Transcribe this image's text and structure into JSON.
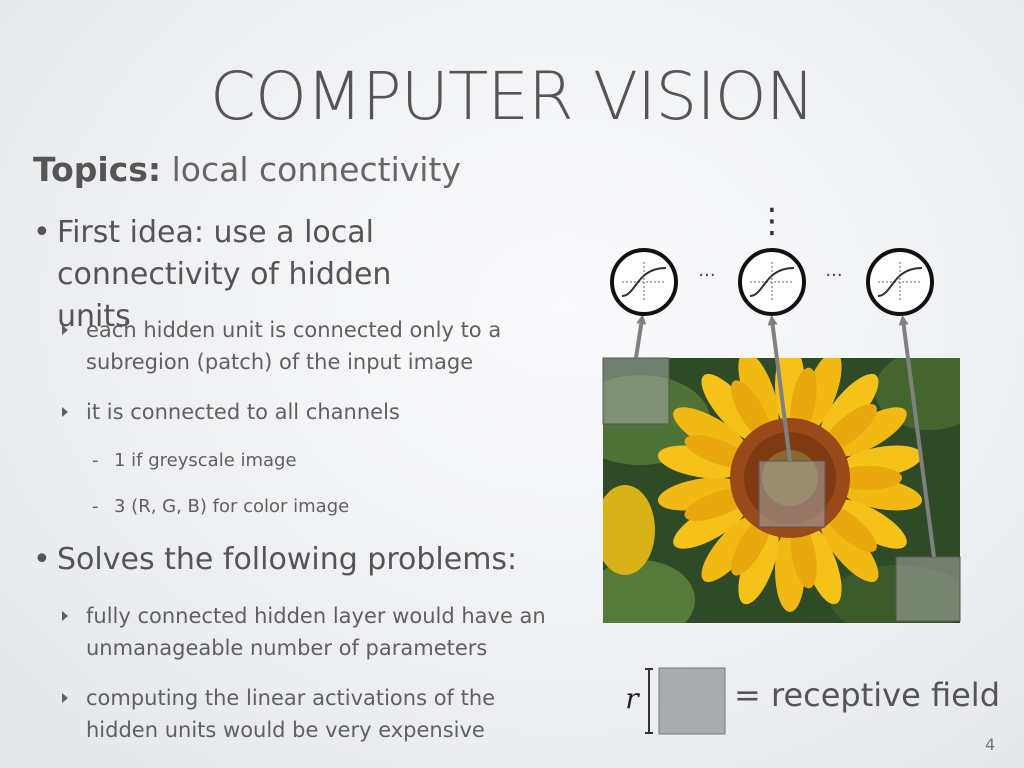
{
  "slide": {
    "title": "COMPUTER VISION",
    "topics_label": "Topics:",
    "topics_value": "local connectivity",
    "page_number": "4"
  },
  "bullets": [
    {
      "text": "First idea: use a local connectivity of hidden units",
      "subs": [
        {
          "text": "each hidden unit is connected only to a subregion (patch) of the input image"
        },
        {
          "text": "it is connected to all channels",
          "subs": [
            "1 if greyscale image",
            "3 (R, G, B) for color image"
          ]
        }
      ]
    },
    {
      "text": "Solves the following problems:",
      "subs": [
        {
          "text": "fully connected hidden layer would have an unmanageable number of parameters"
        },
        {
          "text": "computing the linear activations of the hidden units would be very expensive"
        }
      ]
    }
  ],
  "diagram": {
    "ellipsis": "...",
    "vertical_dots": "⋮",
    "r_label": "r",
    "receptive_field_text": "= receptive field",
    "icons": {
      "neuron": "sigmoid-neuron-icon",
      "image": "sunflower-image"
    },
    "colors": {
      "petal": "#f5c21a",
      "center": "#9a4a1a",
      "leaf": "#3c5a28",
      "arrow": "#808080",
      "patch": "#a9a9a9"
    }
  }
}
